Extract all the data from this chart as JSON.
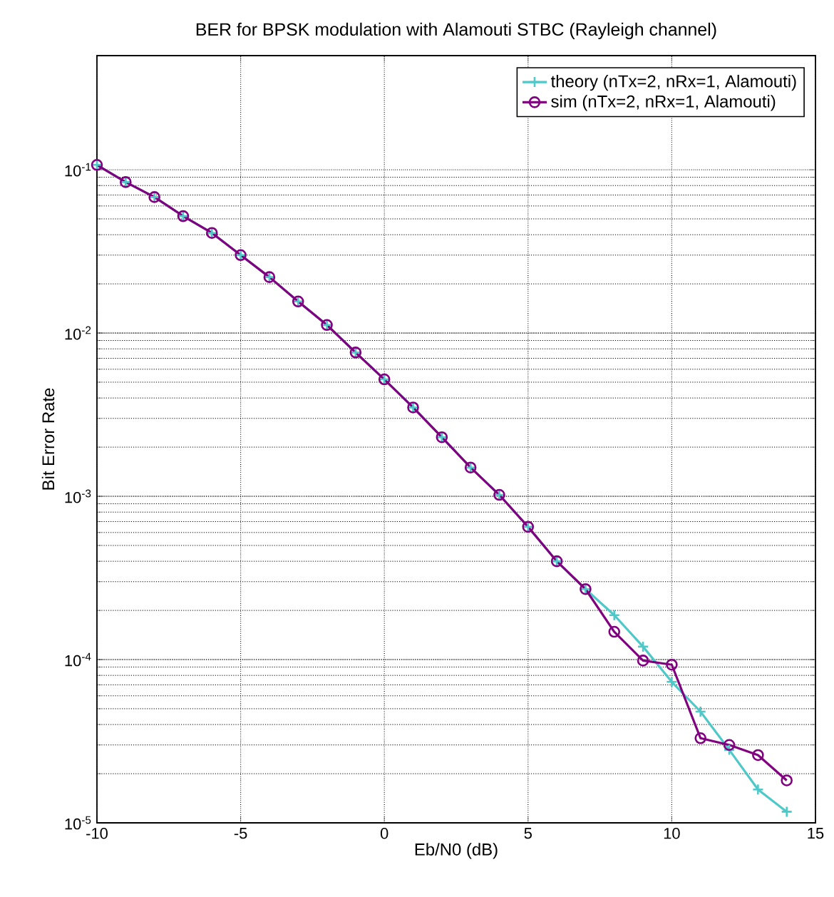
{
  "chart_data": {
    "type": "line",
    "title": "BER for BPSK modulation with Alamouti STBC (Rayleigh channel)",
    "xlabel": "Eb/N0 (dB)",
    "ylabel": "Bit Error Rate",
    "x": [
      -10,
      -9,
      -8,
      -7,
      -6,
      -5,
      -4,
      -3,
      -2,
      -1,
      0,
      1,
      2,
      3,
      4,
      5,
      6,
      7,
      8,
      9,
      10,
      11,
      12,
      13,
      14
    ],
    "series": [
      {
        "name": "theory (nTx=2, nRx=1, Alamouti)",
        "color": "#4fc8c8",
        "marker": "cross",
        "values": [
          0.107,
          0.084,
          0.068,
          0.052,
          0.041,
          0.03,
          0.022,
          0.0156,
          0.0112,
          0.0076,
          0.0052,
          0.0035,
          0.0023,
          0.0015,
          0.00102,
          0.00065,
          0.0004,
          0.00027,
          0.000187,
          0.00012,
          7.3e-05,
          4.8e-05,
          2.8e-05,
          1.6e-05,
          1.17e-05
        ]
      },
      {
        "name": "sim (nTx=2, nRx=1, Alamouti)",
        "color": "#800080",
        "marker": "circle",
        "values": [
          0.107,
          0.084,
          0.068,
          0.052,
          0.041,
          0.03,
          0.022,
          0.0156,
          0.0112,
          0.0076,
          0.0052,
          0.0035,
          0.0023,
          0.0015,
          0.00102,
          0.00065,
          0.0004,
          0.00027,
          0.000148,
          9.86e-05,
          9.3e-05,
          3.3e-05,
          3e-05,
          2.6e-05,
          1.82e-05
        ]
      }
    ],
    "xlim": [
      -10,
      15
    ],
    "xticks": [
      -10,
      -5,
      0,
      5,
      10,
      15
    ],
    "ylim": [
      1e-05,
      0.5
    ],
    "log": "y",
    "yticks": [
      {
        "value": 1e-05,
        "label": "10$^{-5}$"
      },
      {
        "value": 0.0001,
        "label": "10$^{-4}$"
      },
      {
        "value": 0.001,
        "label": "10$^{-3}$"
      },
      {
        "value": 0.01,
        "label": "10$^{-2}$"
      },
      {
        "value": 0.1,
        "label": "10$^{-1}$"
      }
    ],
    "grid": true,
    "legend": "top right"
  }
}
